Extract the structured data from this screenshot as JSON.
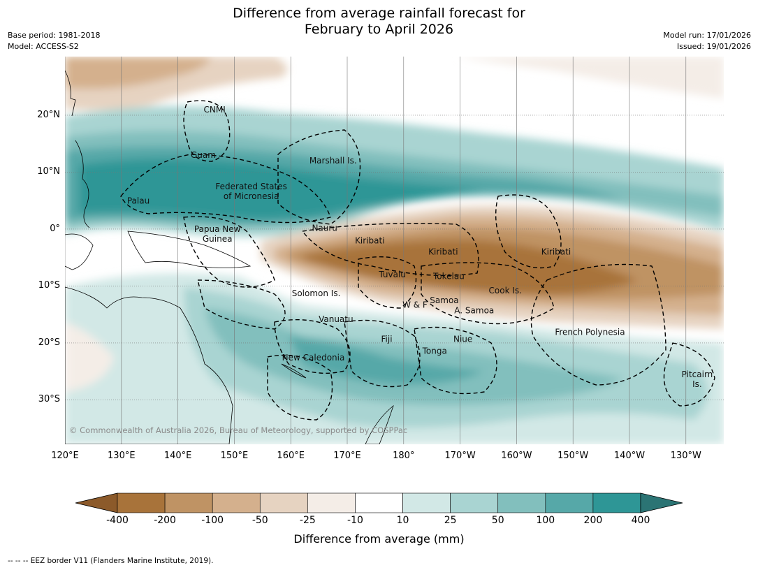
{
  "title": {
    "line1": "Difference from average rainfall forecast for",
    "line2": "February to April 2026"
  },
  "meta": {
    "base_period": "Base period: 1981-2018",
    "model": "Model: ACCESS-S2",
    "model_run": "Model run: 17/01/2026",
    "issued": "Issued: 19/01/2026"
  },
  "map": {
    "lat_ticks": [
      {
        "value": 20,
        "label": "20°N"
      },
      {
        "value": 10,
        "label": "10°N"
      },
      {
        "value": 0,
        "label": "0°"
      },
      {
        "value": -10,
        "label": "10°S"
      },
      {
        "value": -20,
        "label": "20°S"
      },
      {
        "value": -30,
        "label": "30°S"
      }
    ],
    "lon_ticks": [
      {
        "value": 120,
        "label": "120°E"
      },
      {
        "value": 130,
        "label": "130°E"
      },
      {
        "value": 140,
        "label": "140°E"
      },
      {
        "value": 150,
        "label": "150°E"
      },
      {
        "value": 160,
        "label": "160°E"
      },
      {
        "value": 170,
        "label": "170°E"
      },
      {
        "value": 180,
        "label": "180°"
      },
      {
        "value": 190,
        "label": "170°W"
      },
      {
        "value": 200,
        "label": "160°W"
      },
      {
        "value": 210,
        "label": "150°W"
      },
      {
        "value": 220,
        "label": "140°W"
      },
      {
        "value": 230,
        "label": "130°W"
      }
    ],
    "regions": [
      {
        "name": "CNMI",
        "lines": [
          "CNMI"
        ],
        "lon": 146.5,
        "lat": 20.5
      },
      {
        "name": "Guam",
        "lines": [
          "Guam"
        ],
        "lon": 144.5,
        "lat": 12.5
      },
      {
        "name": "Marshall Is.",
        "lines": [
          "Marshall Is."
        ],
        "lon": 167.5,
        "lat": 11.5
      },
      {
        "name": "Palau",
        "lines": [
          "Palau"
        ],
        "lon": 133,
        "lat": 4.5
      },
      {
        "name": "Federated States of Micronesia",
        "lines": [
          "Federated States",
          "of Micronesia"
        ],
        "lon": 153,
        "lat": 7
      },
      {
        "name": "Papua New Guinea",
        "lines": [
          "Papua New",
          "Guinea"
        ],
        "lon": 147,
        "lat": -0.5
      },
      {
        "name": "Nauru",
        "lines": [
          "Nauru"
        ],
        "lon": 166,
        "lat": -0.3
      },
      {
        "name": "Kiribati west",
        "lines": [
          "Kiribati"
        ],
        "lon": 174,
        "lat": -2.5
      },
      {
        "name": "Kiribati central",
        "lines": [
          "Kiribati"
        ],
        "lon": 187,
        "lat": -4.5
      },
      {
        "name": "Kiribati east",
        "lines": [
          "Kiribati"
        ],
        "lon": 207,
        "lat": -4.5
      },
      {
        "name": "Tuvalu",
        "lines": [
          "Tuvalu"
        ],
        "lon": 178,
        "lat": -8.5
      },
      {
        "name": "Tokelau",
        "lines": [
          "Tokelau"
        ],
        "lon": 188,
        "lat": -8.8
      },
      {
        "name": "Cook Is.",
        "lines": [
          "Cook Is."
        ],
        "lon": 198,
        "lat": -11.3
      },
      {
        "name": "Solomon Is.",
        "lines": [
          "Solomon Is."
        ],
        "lon": 164.5,
        "lat": -11.8
      },
      {
        "name": "W & F",
        "lines": [
          "W & F"
        ],
        "lon": 182,
        "lat": -13.8
      },
      {
        "name": "Samoa",
        "lines": [
          "Samoa"
        ],
        "lon": 187.2,
        "lat": -13
      },
      {
        "name": "A. Samoa",
        "lines": [
          "A. Samoa"
        ],
        "lon": 192.5,
        "lat": -14.8
      },
      {
        "name": "Vanuatu",
        "lines": [
          "Vanuatu"
        ],
        "lon": 168,
        "lat": -16.3
      },
      {
        "name": "Fiji",
        "lines": [
          "Fiji"
        ],
        "lon": 177,
        "lat": -19.8
      },
      {
        "name": "Niue",
        "lines": [
          "Niue"
        ],
        "lon": 190.5,
        "lat": -19.8
      },
      {
        "name": "French Polynesia",
        "lines": [
          "French Polynesia"
        ],
        "lon": 213,
        "lat": -18.6
      },
      {
        "name": "Tonga",
        "lines": [
          "Tonga"
        ],
        "lon": 185.5,
        "lat": -21.9
      },
      {
        "name": "New Caledonia",
        "lines": [
          "New Caledonia"
        ],
        "lon": 164,
        "lat": -23.1
      },
      {
        "name": "Pitcairn Is.",
        "lines": [
          "Pitcairn",
          "Is."
        ],
        "lon": 232,
        "lat": -26
      }
    ],
    "copyright": "© Commonwealth of Australia 2026, Bureau of Meteorology, supported by COSPPac"
  },
  "colorbar": {
    "title": "Difference from average (mm)",
    "tick_labels": [
      "-400",
      "-200",
      "-100",
      "-50",
      "-25",
      "-10",
      "10",
      "25",
      "50",
      "100",
      "200",
      "400"
    ],
    "bins": [
      {
        "range": "< -400",
        "color": "#8c5a2a"
      },
      {
        "range": "-400 to -200",
        "color": "#a8733a"
      },
      {
        "range": "-200 to -100",
        "color": "#bf9364"
      },
      {
        "range": "-100 to -50",
        "color": "#d4b08d"
      },
      {
        "range": "-50 to -25",
        "color": "#e6d3c1"
      },
      {
        "range": "-25 to -10",
        "color": "#f4ede7"
      },
      {
        "range": "-10 to 10",
        "color": "#ffffff"
      },
      {
        "range": "10 to 25",
        "color": "#d2e8e6"
      },
      {
        "range": "25 to 50",
        "color": "#a9d4d2"
      },
      {
        "range": "50 to 100",
        "color": "#82bfbd"
      },
      {
        "range": "100 to 200",
        "color": "#56a8a8"
      },
      {
        "range": "200 to 400",
        "color": "#2e9696"
      },
      {
        "range": "> 400",
        "color": "#2b7474"
      }
    ]
  },
  "footnote": "--  --  -- EEZ border V11 (Flanders Marine Institute, 2019)."
}
